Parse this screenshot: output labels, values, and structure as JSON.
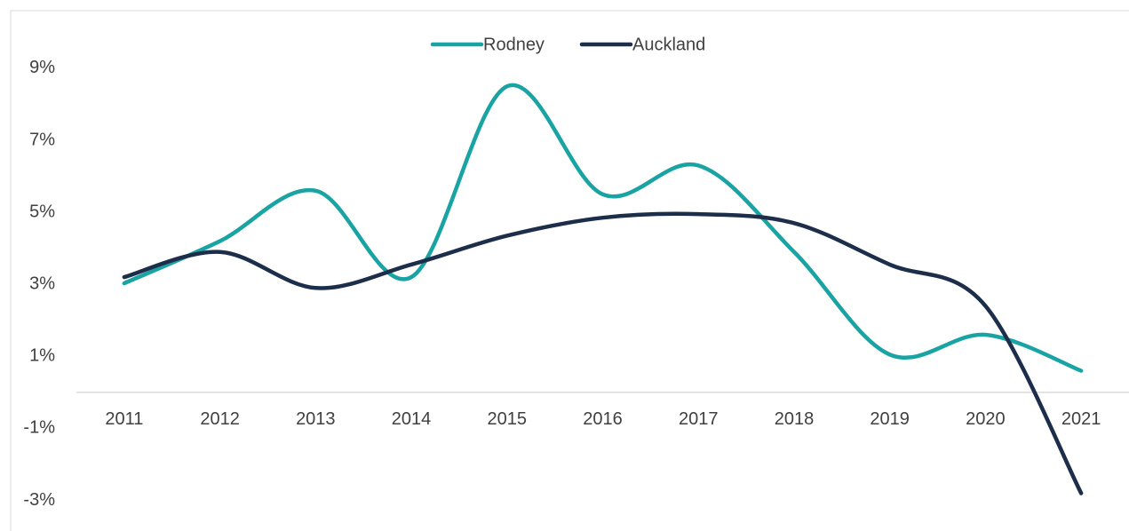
{
  "chart_data": {
    "type": "line",
    "categories": [
      "2011",
      "2012",
      "2013",
      "2014",
      "2015",
      "2016",
      "2017",
      "2018",
      "2019",
      "2020",
      "2021"
    ],
    "series": [
      {
        "name": "Rodney",
        "color": "#1aa3a3",
        "values": [
          3.03,
          4.2,
          5.6,
          3.2,
          8.5,
          5.5,
          6.3,
          3.9,
          1.05,
          1.6,
          0.6
        ]
      },
      {
        "name": "Auckland",
        "color": "#1c2e4a",
        "values": [
          3.2,
          3.9,
          2.9,
          3.55,
          4.35,
          4.85,
          4.95,
          4.7,
          3.55,
          2.4,
          -2.8
        ]
      }
    ],
    "ylim": [
      -3.8,
      10.6
    ],
    "yticks": [
      {
        "value": 9,
        "label": "9%"
      },
      {
        "value": 7,
        "label": "7%"
      },
      {
        "value": 5,
        "label": "5%"
      },
      {
        "value": 3,
        "label": "3%"
      },
      {
        "value": 1,
        "label": "1%"
      },
      {
        "value": -1,
        "label": "-1%"
      },
      {
        "value": -3,
        "label": "-3%"
      }
    ],
    "legend": "top",
    "smooth": true
  }
}
